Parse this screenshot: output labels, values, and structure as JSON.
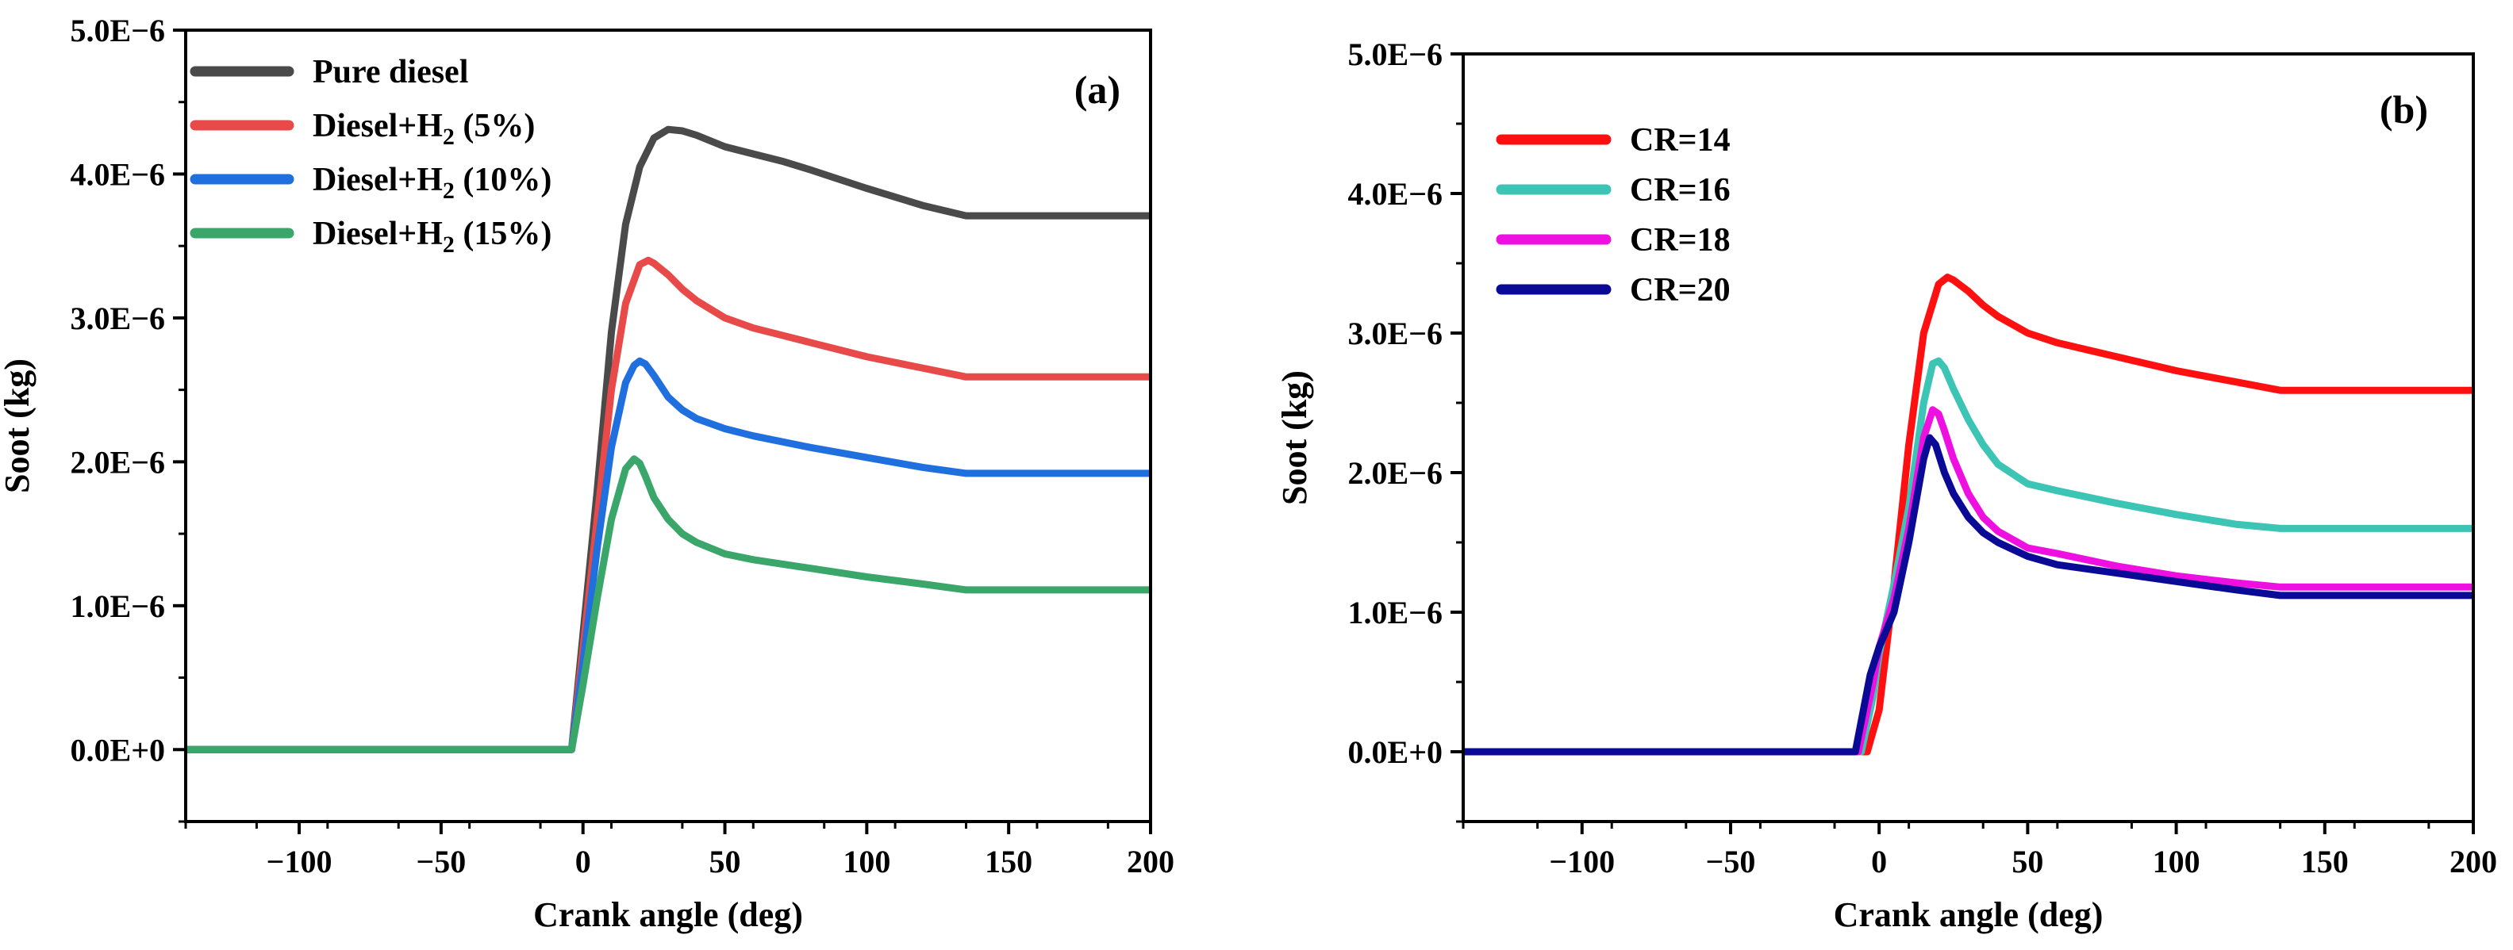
{
  "chart_data": [
    {
      "type": "line",
      "panel_label": "(a)",
      "xlabel": "Crank angle (deg)",
      "ylabel": "Soot (kg)",
      "xlim": [
        -140,
        200
      ],
      "ylim": [
        -5e-07,
        5e-06
      ],
      "xticks": [
        -100,
        -50,
        0,
        50,
        100,
        150,
        200
      ],
      "xtick_labels": [
        "−100",
        "−50",
        "0",
        "50",
        "100",
        "150",
        "200"
      ],
      "yticks": [
        0,
        1e-06,
        2e-06,
        3e-06,
        4e-06,
        5e-06
      ],
      "ytick_labels": [
        "0.0E+0",
        "1.0E−6",
        "2.0E−6",
        "3.0E−6",
        "4.0E−6",
        "5.0E−6"
      ],
      "legend_position": "top-left",
      "series": [
        {
          "name": "Pure diesel",
          "name_parts": [
            "Pure diesel"
          ],
          "color": "#4a4a4a",
          "x": [
            -140,
            -4,
            0,
            5,
            10,
            15,
            20,
            25,
            30,
            35,
            40,
            50,
            60,
            70,
            80,
            100,
            120,
            135,
            200
          ],
          "y": [
            0,
            0,
            8e-07,
            1.8e-06,
            2.9e-06,
            3.65e-06,
            4.05e-06,
            4.25e-06,
            4.31e-06,
            4.3e-06,
            4.27e-06,
            4.19e-06,
            4.14e-06,
            4.09e-06,
            4.03e-06,
            3.9e-06,
            3.78e-06,
            3.71e-06,
            3.71e-06
          ]
        },
        {
          "name": "Diesel+H2 (5%)",
          "name_parts": [
            "Diesel+H",
            "2",
            " (5%)"
          ],
          "color": "#e84a4a",
          "x": [
            -140,
            -4,
            0,
            5,
            10,
            15,
            20,
            23,
            25,
            30,
            35,
            40,
            50,
            60,
            70,
            80,
            100,
            120,
            135,
            200
          ],
          "y": [
            0,
            0,
            7e-07,
            1.6e-06,
            2.5e-06,
            3.1e-06,
            3.37e-06,
            3.4e-06,
            3.38e-06,
            3.3e-06,
            3.2e-06,
            3.12e-06,
            3e-06,
            2.93e-06,
            2.88e-06,
            2.83e-06,
            2.73e-06,
            2.65e-06,
            2.59e-06,
            2.59e-06
          ]
        },
        {
          "name": "Diesel+H2 (10%)",
          "name_parts": [
            "Diesel+H",
            "2",
            " (10%)"
          ],
          "color": "#1f6fdf",
          "x": [
            -140,
            -4,
            0,
            5,
            10,
            15,
            18,
            20,
            22,
            25,
            30,
            35,
            40,
            50,
            60,
            80,
            100,
            120,
            135,
            200
          ],
          "y": [
            0,
            0,
            6e-07,
            1.4e-06,
            2.1e-06,
            2.55e-06,
            2.67e-06,
            2.7e-06,
            2.68e-06,
            2.6e-06,
            2.45e-06,
            2.36e-06,
            2.3e-06,
            2.23e-06,
            2.18e-06,
            2.1e-06,
            2.03e-06,
            1.96e-06,
            1.92e-06,
            1.92e-06
          ]
        },
        {
          "name": "Diesel+H2 (15%)",
          "name_parts": [
            "Diesel+H",
            "2",
            " (15%)"
          ],
          "color": "#3aa66a",
          "x": [
            -140,
            -4,
            0,
            5,
            10,
            15,
            18,
            20,
            22,
            25,
            30,
            35,
            40,
            50,
            60,
            80,
            100,
            120,
            135,
            200
          ],
          "y": [
            0,
            0,
            4.5e-07,
            1.05e-06,
            1.6e-06,
            1.95e-06,
            2.02e-06,
            1.99e-06,
            1.9e-06,
            1.75e-06,
            1.6e-06,
            1.5e-06,
            1.44e-06,
            1.36e-06,
            1.32e-06,
            1.26e-06,
            1.2e-06,
            1.15e-06,
            1.11e-06,
            1.11e-06
          ]
        }
      ]
    },
    {
      "type": "line",
      "panel_label": "(b)",
      "xlabel": "Crank angle (deg)",
      "ylabel": "Soot (kg)",
      "xlim": [
        -140,
        200
      ],
      "ylim": [
        -5e-07,
        5e-06
      ],
      "xticks": [
        -100,
        -50,
        0,
        50,
        100,
        150,
        200
      ],
      "xtick_labels": [
        "−100",
        "−50",
        "0",
        "50",
        "100",
        "150",
        "200"
      ],
      "yticks": [
        0,
        1e-06,
        2e-06,
        3e-06,
        4e-06,
        5e-06
      ],
      "ytick_labels": [
        "0.0E+0",
        "1.0E−6",
        "2.0E−6",
        "3.0E−6",
        "4.0E−6",
        "5.0E−6"
      ],
      "legend_position": "top-left",
      "series": [
        {
          "name": "CR=14",
          "name_parts": [
            "CR=14"
          ],
          "color": "#ff1010",
          "x": [
            -140,
            -4,
            0,
            5,
            10,
            15,
            20,
            23,
            25,
            30,
            35,
            40,
            50,
            60,
            70,
            80,
            100,
            120,
            135,
            200
          ],
          "y": [
            0,
            0,
            3e-07,
            1.2e-06,
            2.2e-06,
            3e-06,
            3.35e-06,
            3.4e-06,
            3.38e-06,
            3.3e-06,
            3.2e-06,
            3.12e-06,
            3e-06,
            2.93e-06,
            2.88e-06,
            2.83e-06,
            2.73e-06,
            2.65e-06,
            2.59e-06,
            2.59e-06
          ]
        },
        {
          "name": "CR=16",
          "name_parts": [
            "CR=16"
          ],
          "color": "#3cc4b4",
          "x": [
            -140,
            -6,
            -2,
            0,
            5,
            10,
            15,
            18,
            20,
            22,
            25,
            30,
            35,
            40,
            50,
            60,
            80,
            100,
            120,
            135,
            200
          ],
          "y": [
            0,
            0,
            4e-07,
            7e-07,
            1.2e-06,
            1.75e-06,
            2.5e-06,
            2.78e-06,
            2.8e-06,
            2.75e-06,
            2.6e-06,
            2.38e-06,
            2.2e-06,
            2.06e-06,
            1.92e-06,
            1.87e-06,
            1.78e-06,
            1.7e-06,
            1.63e-06,
            1.6e-06,
            1.6e-06
          ]
        },
        {
          "name": "CR=18",
          "name_parts": [
            "CR=18"
          ],
          "color": "#ee10e0",
          "x": [
            -140,
            -7,
            -2,
            0,
            5,
            10,
            15,
            18,
            20,
            22,
            25,
            30,
            35,
            40,
            50,
            60,
            80,
            100,
            120,
            135,
            200
          ],
          "y": [
            0,
            0,
            5e-07,
            7.5e-07,
            1.1e-06,
            1.6e-06,
            2.25e-06,
            2.45e-06,
            2.42e-06,
            2.3e-06,
            2.1e-06,
            1.85e-06,
            1.68e-06,
            1.58e-06,
            1.46e-06,
            1.42e-06,
            1.33e-06,
            1.26e-06,
            1.21e-06,
            1.18e-06,
            1.18e-06
          ]
        },
        {
          "name": "CR=20",
          "name_parts": [
            "CR=20"
          ],
          "color": "#0a0a96",
          "x": [
            -140,
            -8,
            -3,
            0,
            5,
            10,
            15,
            17,
            19,
            22,
            25,
            30,
            35,
            40,
            50,
            60,
            80,
            100,
            120,
            135,
            200
          ],
          "y": [
            0,
            0,
            5.5e-07,
            7.5e-07,
            1e-06,
            1.5e-06,
            2.1e-06,
            2.25e-06,
            2.2e-06,
            2e-06,
            1.85e-06,
            1.68e-06,
            1.57e-06,
            1.5e-06,
            1.4e-06,
            1.34e-06,
            1.28e-06,
            1.22e-06,
            1.16e-06,
            1.12e-06,
            1.12e-06
          ]
        }
      ]
    }
  ]
}
